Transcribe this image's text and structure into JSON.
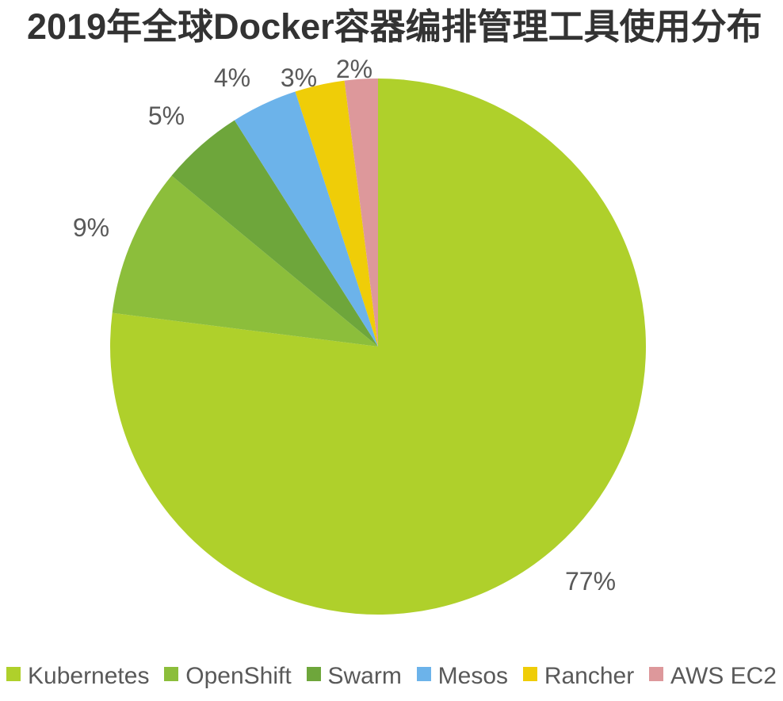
{
  "page": {
    "background": "#ffffff"
  },
  "header": {
    "title": "2019年全球Docker容器编排管理工具使用分布"
  },
  "chart_data": {
    "type": "pie",
    "title": "2019年全球Docker容器编排管理工具使用分布",
    "unit": "%",
    "start_angle": "top",
    "direction": "clockwise",
    "legend_position": "bottom",
    "title_color": "#333333",
    "text_color": "#595959",
    "slices": [
      {
        "name": "Kubernetes",
        "value": 77,
        "label": "77%",
        "color": "#AFD02B"
      },
      {
        "name": "OpenShift",
        "value": 9,
        "label": "9%",
        "color": "#8CBE3B"
      },
      {
        "name": "Swarm",
        "value": 5,
        "label": "5%",
        "color": "#6EA63B"
      },
      {
        "name": "Mesos",
        "value": 4,
        "label": "4%",
        "color": "#6CB3EA"
      },
      {
        "name": "Rancher",
        "value": 3,
        "label": "3%",
        "color": "#EFCD08"
      },
      {
        "name": "AWS EC2",
        "value": 2,
        "label": "2%",
        "color": "#DD989B"
      }
    ]
  }
}
